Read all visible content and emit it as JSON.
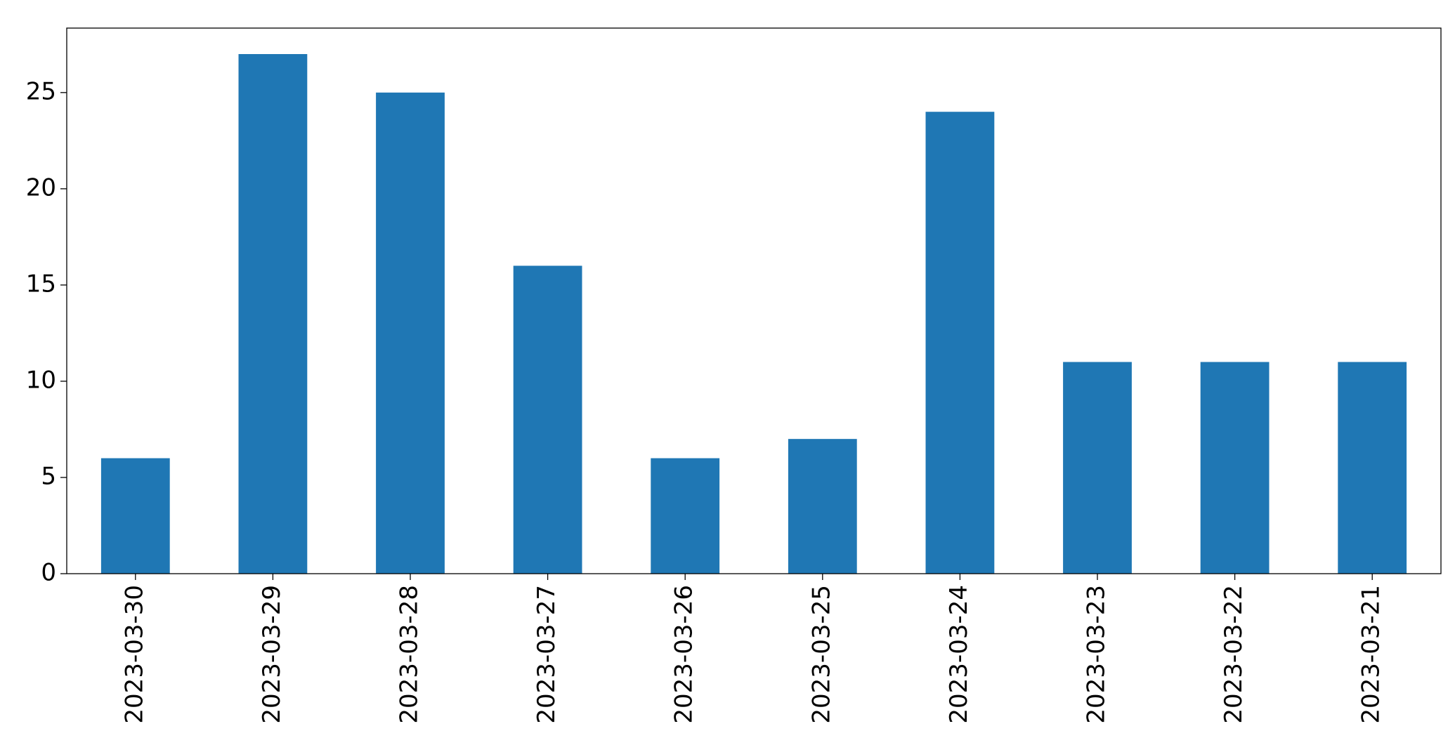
{
  "chart_data": {
    "type": "bar",
    "categories": [
      "2023-03-30",
      "2023-03-29",
      "2023-03-28",
      "2023-03-27",
      "2023-03-26",
      "2023-03-25",
      "2023-03-24",
      "2023-03-23",
      "2023-03-22",
      "2023-03-21"
    ],
    "values": [
      6,
      27,
      25,
      16,
      6,
      7,
      24,
      11,
      11,
      11
    ],
    "color": "#1f77b4",
    "ylim": [
      0,
      28.35
    ],
    "yticks": [
      0,
      5,
      10,
      15,
      20,
      25
    ],
    "grid": false
  }
}
